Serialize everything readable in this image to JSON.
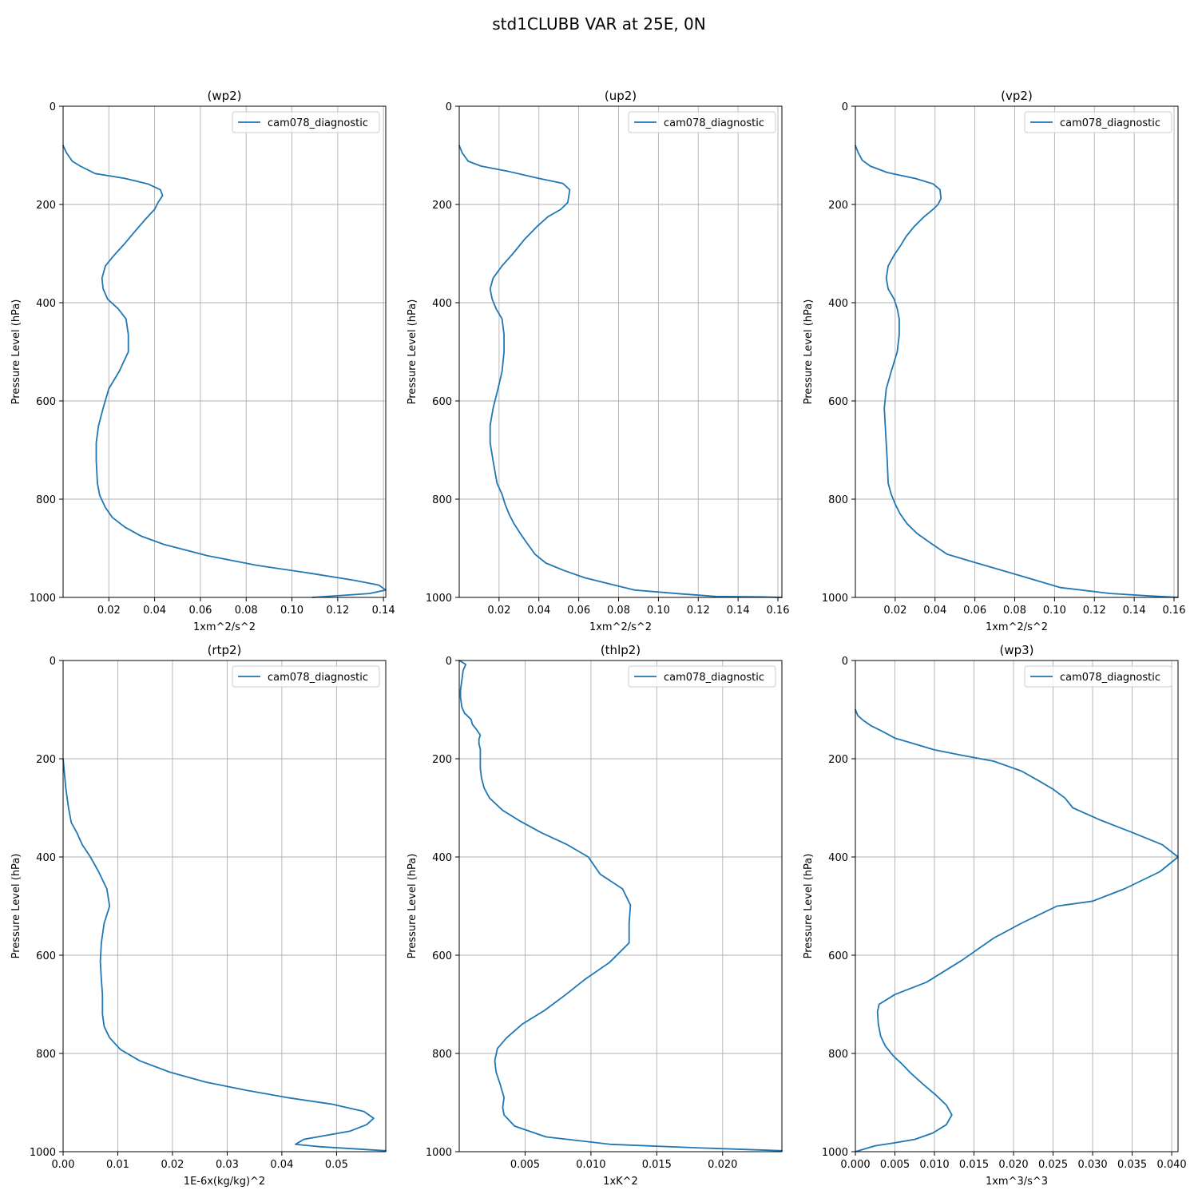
{
  "figure": {
    "title": "std1CLUBB VAR at 25E, 0N"
  },
  "colors": {
    "series": "#1f77b4",
    "grid": "#b0b0b0"
  },
  "chart_data": [
    {
      "type": "line",
      "title": "(wp2)",
      "xlabel": "1xm^2/s^2",
      "ylabel": "Pressure Level (hPa)",
      "xlim": [
        0.0,
        0.141
      ],
      "ylim": [
        1000,
        0
      ],
      "xticks": [
        0.02,
        0.04,
        0.06,
        0.08,
        0.1,
        0.12,
        0.14
      ],
      "xtick_labels": [
        "0.02",
        "0.04",
        "0.06",
        "0.08",
        "0.10",
        "0.12",
        "0.14"
      ],
      "yticks": [
        0,
        200,
        400,
        600,
        800,
        1000
      ],
      "ytick_labels": [
        "0",
        "200",
        "400",
        "600",
        "800",
        "1000"
      ],
      "grid": true,
      "legend": "upper right",
      "series": [
        {
          "name": "cam078_diagnostic",
          "x": [
            0.0,
            0.0015,
            0.004,
            0.0075,
            0.014,
            0.027,
            0.037,
            0.0425,
            0.0435,
            0.0415,
            0.04,
            0.036,
            0.031,
            0.0265,
            0.022,
            0.0185,
            0.017,
            0.0175,
            0.0195,
            0.024,
            0.0275,
            0.0285,
            0.0285,
            0.0245,
            0.02,
            0.0175,
            0.0155,
            0.0145,
            0.0145,
            0.015,
            0.016,
            0.0185,
            0.0215,
            0.027,
            0.034,
            0.044,
            0.063,
            0.085,
            0.107,
            0.127,
            0.138,
            0.141,
            0.134,
            0.109
          ],
          "y": [
            80,
            95,
            112,
            122,
            137,
            147,
            158,
            170,
            182,
            196,
            210,
            230,
            257,
            282,
            305,
            325,
            350,
            372,
            393,
            412,
            433,
            465,
            500,
            540,
            575,
            615,
            650,
            685,
            722,
            768,
            792,
            817,
            837,
            857,
            875,
            892,
            915,
            935,
            950,
            965,
            975,
            985,
            992,
            1000
          ]
        }
      ]
    },
    {
      "type": "line",
      "title": "(up2)",
      "xlabel": "1xm^2/s^2",
      "ylabel": "Pressure Level (hPa)",
      "xlim": [
        0.0,
        0.162
      ],
      "ylim": [
        1000,
        0
      ],
      "xticks": [
        0.02,
        0.04,
        0.06,
        0.08,
        0.1,
        0.12,
        0.14,
        0.16
      ],
      "xtick_labels": [
        "0.02",
        "0.04",
        "0.06",
        "0.08",
        "0.10",
        "0.12",
        "0.14",
        "0.16"
      ],
      "yticks": [
        0,
        200,
        400,
        600,
        800,
        1000
      ],
      "ytick_labels": [
        "0",
        "200",
        "400",
        "600",
        "800",
        "1000"
      ],
      "grid": true,
      "legend": "upper right",
      "series": [
        {
          "name": "cam078_diagnostic",
          "x": [
            0.0,
            0.0015,
            0.0045,
            0.011,
            0.024,
            0.04,
            0.052,
            0.0555,
            0.0545,
            0.051,
            0.0445,
            0.039,
            0.033,
            0.027,
            0.0215,
            0.017,
            0.0155,
            0.0165,
            0.0185,
            0.0215,
            0.0225,
            0.0225,
            0.0215,
            0.0195,
            0.017,
            0.0155,
            0.0155,
            0.017,
            0.019,
            0.0215,
            0.023,
            0.025,
            0.0275,
            0.031,
            0.0345,
            0.038,
            0.0435,
            0.0525,
            0.063,
            0.088,
            0.112,
            0.129,
            0.152,
            0.162
          ],
          "y": [
            80,
            95,
            112,
            122,
            132,
            147,
            157,
            170,
            196,
            210,
            225,
            245,
            270,
            300,
            325,
            350,
            372,
            392,
            412,
            433,
            465,
            500,
            540,
            575,
            615,
            650,
            685,
            722,
            768,
            790,
            810,
            830,
            850,
            872,
            892,
            912,
            930,
            945,
            960,
            985,
            993,
            998,
            999,
            1000
          ]
        }
      ]
    },
    {
      "type": "line",
      "title": "(vp2)",
      "xlabel": "1xm^2/s^2",
      "ylabel": "Pressure Level (hPa)",
      "xlim": [
        0.0,
        0.162
      ],
      "ylim": [
        1000,
        0
      ],
      "xticks": [
        0.02,
        0.04,
        0.06,
        0.08,
        0.1,
        0.12,
        0.14,
        0.16
      ],
      "xtick_labels": [
        "0.02",
        "0.04",
        "0.06",
        "0.08",
        "0.10",
        "0.12",
        "0.14",
        "0.16"
      ],
      "yticks": [
        0,
        200,
        400,
        600,
        800,
        1000
      ],
      "ytick_labels": [
        "0",
        "200",
        "400",
        "600",
        "800",
        "1000"
      ],
      "grid": true,
      "legend": "upper right",
      "series": [
        {
          "name": "cam078_diagnostic",
          "x": [
            0.0,
            0.0015,
            0.0035,
            0.0075,
            0.016,
            0.03,
            0.039,
            0.0425,
            0.043,
            0.0415,
            0.039,
            0.0345,
            0.0295,
            0.0255,
            0.0225,
            0.0195,
            0.0165,
            0.0155,
            0.0165,
            0.0195,
            0.021,
            0.022,
            0.022,
            0.021,
            0.018,
            0.0155,
            0.0145,
            0.015,
            0.016,
            0.0165,
            0.018,
            0.02,
            0.0225,
            0.026,
            0.031,
            0.038,
            0.046,
            0.061,
            0.082,
            0.103,
            0.128,
            0.148,
            0.162
          ],
          "y": [
            80,
            95,
            110,
            122,
            135,
            147,
            158,
            170,
            188,
            200,
            210,
            225,
            245,
            265,
            285,
            303,
            325,
            350,
            372,
            393,
            412,
            433,
            465,
            500,
            540,
            575,
            615,
            650,
            722,
            768,
            790,
            810,
            830,
            850,
            870,
            890,
            912,
            930,
            955,
            980,
            992,
            997,
            1000
          ]
        }
      ]
    },
    {
      "type": "line",
      "title": "(rtp2)",
      "xlabel": "1E-6x(kg/kg)^2",
      "ylabel": "Pressure Level (hPa)",
      "xlim": [
        0.0,
        0.059
      ],
      "ylim": [
        1000,
        0
      ],
      "xticks": [
        0.0,
        0.01,
        0.02,
        0.03,
        0.04,
        0.05
      ],
      "xtick_labels": [
        "0.00",
        "0.01",
        "0.02",
        "0.03",
        "0.04",
        "0.05"
      ],
      "yticks": [
        0,
        200,
        400,
        600,
        800,
        1000
      ],
      "ytick_labels": [
        "0",
        "200",
        "400",
        "600",
        "800",
        "1000"
      ],
      "grid": true,
      "legend": "upper right",
      "series": [
        {
          "name": "cam078_diagnostic",
          "x": [
            0.0,
            0.0005,
            0.001,
            0.0015,
            0.0025,
            0.0035,
            0.005,
            0.0065,
            0.008,
            0.0085,
            0.0075,
            0.007,
            0.0068,
            0.007,
            0.0072,
            0.0072,
            0.0072,
            0.0075,
            0.0085,
            0.0105,
            0.014,
            0.0195,
            0.026,
            0.0335,
            0.041,
            0.049,
            0.055,
            0.0568,
            0.0555,
            0.0525,
            0.044,
            0.0425,
            0.047,
            0.059
          ],
          "y": [
            200,
            260,
            300,
            330,
            350,
            375,
            400,
            430,
            465,
            500,
            535,
            575,
            612,
            650,
            680,
            700,
            720,
            745,
            768,
            792,
            815,
            838,
            858,
            875,
            890,
            903,
            918,
            932,
            945,
            958,
            975,
            985,
            990,
            998
          ]
        }
      ]
    },
    {
      "type": "line",
      "title": "(thlp2)",
      "xlabel": "1xK^2",
      "ylabel": "Pressure Level (hPa)",
      "xlim": [
        0.0,
        0.0245
      ],
      "ylim": [
        1000,
        0
      ],
      "xticks": [
        0.005,
        0.01,
        0.015,
        0.02
      ],
      "xtick_labels": [
        "0.005",
        "0.010",
        "0.015",
        "0.020"
      ],
      "yticks": [
        0,
        200,
        400,
        600,
        800,
        1000
      ],
      "ytick_labels": [
        "0",
        "200",
        "400",
        "600",
        "800",
        "1000"
      ],
      "grid": true,
      "legend": "upper right",
      "series": [
        {
          "name": "cam078_diagnostic",
          "x": [
            0.0,
            0.0005,
            0.0003,
            0.0002,
            0.0001,
            0.0001,
            0.0002,
            0.0004,
            0.0009,
            0.001,
            0.0013,
            0.0016,
            0.0015,
            0.0015,
            0.0016,
            0.0016,
            0.0016,
            0.0017,
            0.0019,
            0.0023,
            0.0033,
            0.0045,
            0.0062,
            0.0082,
            0.0098,
            0.0107,
            0.0124,
            0.013,
            0.0129,
            0.0129,
            0.0114,
            0.0095,
            0.0081,
            0.0065,
            0.0048,
            0.0036,
            0.0029,
            0.0027,
            0.0028,
            0.0031,
            0.0034,
            0.0033,
            0.0034,
            0.0042,
            0.0066,
            0.0115,
            0.018,
            0.0245
          ],
          "y": [
            0,
            8,
            20,
            40,
            60,
            75,
            95,
            107,
            120,
            130,
            140,
            152,
            160,
            170,
            180,
            200,
            220,
            240,
            260,
            280,
            305,
            325,
            350,
            375,
            400,
            435,
            465,
            498,
            535,
            575,
            615,
            650,
            680,
            712,
            740,
            768,
            790,
            815,
            838,
            862,
            890,
            910,
            925,
            948,
            970,
            985,
            992,
            998
          ]
        }
      ]
    },
    {
      "type": "line",
      "title": "(wp3)",
      "xlabel": "1xm^3/s^3",
      "ylabel": "Pressure Level (hPa)",
      "xlim": [
        0.0,
        0.0408
      ],
      "ylim": [
        1000,
        0
      ],
      "xticks": [
        0.0,
        0.005,
        0.01,
        0.015,
        0.02,
        0.025,
        0.03,
        0.035,
        0.04
      ],
      "xtick_labels": [
        "0.000",
        "0.005",
        "0.010",
        "0.015",
        "0.020",
        "0.025",
        "0.030",
        "0.035",
        "0.040"
      ],
      "yticks": [
        0,
        200,
        400,
        600,
        800,
        1000
      ],
      "ytick_labels": [
        "0",
        "200",
        "400",
        "600",
        "800",
        "1000"
      ],
      "grid": true,
      "legend": "upper right",
      "series": [
        {
          "name": "cam078_diagnostic",
          "x": [
            0.0,
            0.0003,
            0.001,
            0.002,
            0.0035,
            0.005,
            0.0075,
            0.01,
            0.0135,
            0.0175,
            0.021,
            0.0232,
            0.025,
            0.0265,
            0.0275,
            0.031,
            0.035,
            0.0388,
            0.0408,
            0.0385,
            0.034,
            0.03,
            0.0255,
            0.021,
            0.0175,
            0.0135,
            0.009,
            0.005,
            0.003,
            0.0028,
            0.0029,
            0.0032,
            0.0038,
            0.0048,
            0.0058,
            0.007,
            0.0085,
            0.0102,
            0.0115,
            0.0122,
            0.0115,
            0.0098,
            0.0075,
            0.005,
            0.0025,
            0.0
          ],
          "y": [
            100,
            112,
            122,
            133,
            145,
            158,
            170,
            182,
            193,
            205,
            225,
            245,
            262,
            280,
            300,
            325,
            350,
            375,
            400,
            430,
            465,
            490,
            500,
            535,
            565,
            610,
            655,
            680,
            700,
            715,
            740,
            765,
            785,
            805,
            820,
            840,
            862,
            885,
            905,
            925,
            945,
            962,
            975,
            982,
            988,
            1000
          ]
        }
      ]
    }
  ]
}
